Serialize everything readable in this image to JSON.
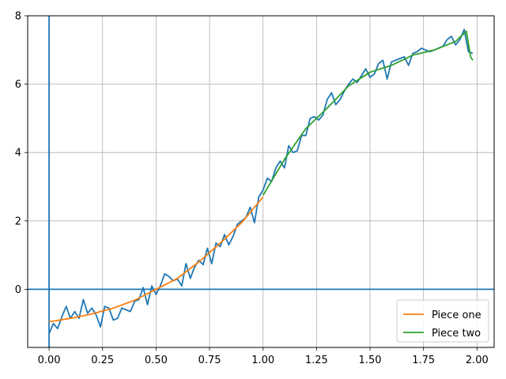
{
  "chart_data": {
    "type": "line",
    "title": "",
    "xlabel": "",
    "ylabel": "",
    "xlim": [
      -0.1,
      2.08
    ],
    "ylim": [
      -1.7,
      8.0
    ],
    "xticks": [
      0.0,
      0.25,
      0.5,
      0.75,
      1.0,
      1.25,
      1.5,
      1.75,
      2.0
    ],
    "xtick_labels": [
      "0.00",
      "0.25",
      "0.50",
      "0.75",
      "1.00",
      "1.25",
      "1.50",
      "1.75",
      "2.00"
    ],
    "yticks": [
      0,
      2,
      4,
      6,
      8
    ],
    "ytick_labels": [
      "0",
      "2",
      "4",
      "6",
      "8"
    ],
    "grid": true,
    "reference_lines": {
      "x": 0,
      "y": 0
    },
    "legend_position": "lower-right",
    "colors": {
      "noisy": "#1f77b4",
      "piece_one": "#ff7f0e",
      "piece_two": "#2ca02c",
      "grid": "#b0b0b0",
      "axes": "#1f77b4"
    },
    "series": [
      {
        "x": [
          0.0,
          0.02,
          0.04,
          0.06,
          0.08,
          0.1,
          0.12,
          0.14,
          0.16,
          0.18,
          0.2,
          0.22,
          0.24,
          0.26,
          0.28,
          0.3,
          0.32,
          0.34,
          0.36,
          0.38,
          0.4,
          0.42,
          0.44,
          0.46,
          0.48,
          0.5,
          0.52,
          0.54,
          0.56,
          0.58,
          0.6,
          0.62,
          0.64,
          0.66,
          0.68,
          0.7,
          0.72,
          0.74,
          0.76,
          0.78,
          0.8,
          0.82,
          0.84,
          0.86,
          0.88,
          0.9,
          0.92,
          0.94,
          0.96,
          0.98,
          1.0,
          1.02,
          1.04,
          1.06,
          1.08,
          1.1,
          1.12,
          1.14,
          1.16,
          1.18,
          1.2,
          1.22,
          1.24,
          1.26,
          1.28,
          1.3,
          1.32,
          1.34,
          1.36,
          1.38,
          1.4,
          1.42,
          1.44,
          1.46,
          1.48,
          1.5,
          1.52,
          1.54,
          1.56,
          1.58,
          1.6,
          1.62,
          1.64,
          1.66,
          1.68,
          1.7,
          1.72,
          1.74,
          1.76,
          1.78,
          1.8,
          1.82,
          1.84,
          1.86,
          1.88,
          1.9,
          1.92,
          1.94,
          1.96,
          1.98
        ],
        "values": [
          -1.3,
          -1.0,
          -1.15,
          -0.8,
          -0.5,
          -0.85,
          -0.65,
          -0.85,
          -0.3,
          -0.7,
          -0.55,
          -0.75,
          -1.1,
          -0.5,
          -0.55,
          -0.9,
          -0.85,
          -0.55,
          -0.6,
          -0.65,
          -0.35,
          -0.3,
          0.05,
          -0.45,
          0.1,
          -0.15,
          0.1,
          0.45,
          0.38,
          0.25,
          0.3,
          0.1,
          0.75,
          0.32,
          0.65,
          0.85,
          0.72,
          1.2,
          0.75,
          1.35,
          1.25,
          1.6,
          1.3,
          1.55,
          1.9,
          2.0,
          2.1,
          2.4,
          1.95,
          2.7,
          2.9,
          3.25,
          3.15,
          3.55,
          3.75,
          3.55,
          4.2,
          4.0,
          4.05,
          4.5,
          4.5,
          5.0,
          5.05,
          4.95,
          5.1,
          5.55,
          5.75,
          5.4,
          5.55,
          5.8,
          6.0,
          6.15,
          6.05,
          6.25,
          6.45,
          6.2,
          6.3,
          6.6,
          6.7,
          6.15,
          6.65,
          6.7,
          6.75,
          6.8,
          6.55,
          6.9,
          6.95,
          7.05,
          7.0,
          6.95,
          7.0,
          7.05,
          7.1,
          7.3,
          7.4,
          7.15,
          7.3,
          7.6,
          6.95,
          6.9
        ]
      },
      {
        "name": "Piece one",
        "x": [
          0.0,
          0.1,
          0.2,
          0.3,
          0.4,
          0.5,
          0.6,
          0.7,
          0.8,
          0.9,
          1.0
        ],
        "values": [
          -0.95,
          -0.85,
          -0.72,
          -0.55,
          -0.32,
          0.0,
          0.32,
          0.8,
          1.35,
          1.95,
          2.7
        ]
      },
      {
        "name": "Piece two",
        "x": [
          1.0,
          1.1,
          1.2,
          1.3,
          1.4,
          1.5,
          1.6,
          1.7,
          1.8,
          1.9,
          1.95,
          1.97,
          1.98
        ],
        "values": [
          2.75,
          3.8,
          4.7,
          5.3,
          5.95,
          6.35,
          6.55,
          6.85,
          7.0,
          7.25,
          7.55,
          6.8,
          6.7
        ]
      }
    ]
  }
}
